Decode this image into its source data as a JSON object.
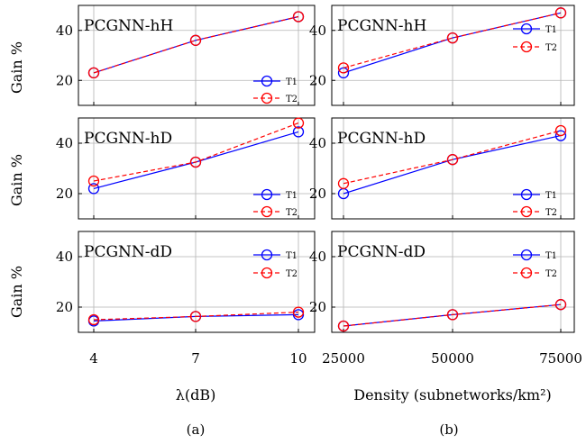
{
  "figure": {
    "sub_captions": [
      "(a)",
      "(b)"
    ],
    "ylabel": "Gain %",
    "xlabels": [
      "λ(dB)",
      "Density (subnetworks/km²)"
    ],
    "colors": {
      "T1": "#0000ff",
      "T2": "#ff0000"
    }
  },
  "chart_data": [
    {
      "type": "line",
      "panel": "a",
      "title": "PCGNN-hH",
      "ylabel": "Gain %",
      "xlabel": "λ(dB)",
      "x": [
        4,
        7,
        10
      ],
      "xticks": [
        "4",
        "7",
        "10"
      ],
      "yticks": [
        20,
        40
      ],
      "ylim": [
        10,
        50
      ],
      "grid": true,
      "legend": "bottom-right",
      "series": [
        {
          "name": "T1",
          "style": "solid",
          "values": [
            23,
            36,
            45.5
          ]
        },
        {
          "name": "T2",
          "style": "dashed",
          "values": [
            23,
            36,
            45.5
          ]
        }
      ]
    },
    {
      "type": "line",
      "panel": "a",
      "title": "PCGNN-hD",
      "ylabel": "Gain %",
      "xlabel": "λ(dB)",
      "x": [
        4,
        7,
        10
      ],
      "xticks": [
        "4",
        "7",
        "10"
      ],
      "yticks": [
        20,
        40
      ],
      "ylim": [
        10,
        50
      ],
      "grid": true,
      "legend": "bottom-right",
      "series": [
        {
          "name": "T1",
          "style": "solid",
          "values": [
            22,
            32.5,
            44.5
          ]
        },
        {
          "name": "T2",
          "style": "dashed",
          "values": [
            25,
            32.5,
            48
          ]
        }
      ]
    },
    {
      "type": "line",
      "panel": "a",
      "title": "PCGNN-dD",
      "ylabel": "Gain %",
      "xlabel": "λ(dB)",
      "x": [
        4,
        7,
        10
      ],
      "xticks": [
        "4",
        "7",
        "10"
      ],
      "yticks": [
        20,
        40
      ],
      "ylim": [
        10,
        50
      ],
      "grid": true,
      "legend": "top-right",
      "series": [
        {
          "name": "T1",
          "style": "solid",
          "values": [
            14.5,
            16.3,
            17
          ]
        },
        {
          "name": "T2",
          "style": "dashed",
          "values": [
            15,
            16.3,
            18
          ]
        }
      ]
    },
    {
      "type": "line",
      "panel": "b",
      "title": "PCGNN-hH",
      "xlabel": "Density (subnetworks/km²)",
      "x": [
        25000,
        50000,
        75000
      ],
      "xticks": [
        "25000",
        "50000",
        "75000"
      ],
      "yticks": [
        20,
        40
      ],
      "ylim": [
        10,
        50
      ],
      "grid": true,
      "legend": "top-right",
      "series": [
        {
          "name": "T1",
          "style": "solid",
          "values": [
            23,
            37,
            47
          ]
        },
        {
          "name": "T2",
          "style": "dashed",
          "values": [
            25,
            37,
            47
          ]
        }
      ]
    },
    {
      "type": "line",
      "panel": "b",
      "title": "PCGNN-hD",
      "xlabel": "Density (subnetworks/km²)",
      "x": [
        25000,
        50000,
        75000
      ],
      "xticks": [
        "25000",
        "50000",
        "75000"
      ],
      "yticks": [
        20,
        40
      ],
      "ylim": [
        10,
        50
      ],
      "grid": true,
      "legend": "bottom-right",
      "series": [
        {
          "name": "T1",
          "style": "solid",
          "values": [
            20,
            33.5,
            43
          ]
        },
        {
          "name": "T2",
          "style": "dashed",
          "values": [
            24,
            33.5,
            45
          ]
        }
      ]
    },
    {
      "type": "line",
      "panel": "b",
      "title": "PCGNN-dD",
      "xlabel": "Density (subnetworks/km²)",
      "x": [
        25000,
        50000,
        75000
      ],
      "xticks": [
        "25000",
        "50000",
        "75000"
      ],
      "yticks": [
        20,
        40
      ],
      "ylim": [
        10,
        50
      ],
      "grid": true,
      "legend": "top-right",
      "series": [
        {
          "name": "T1",
          "style": "solid",
          "values": [
            12.5,
            17,
            21
          ]
        },
        {
          "name": "T2",
          "style": "dashed",
          "values": [
            12.5,
            17,
            21
          ]
        }
      ]
    }
  ]
}
